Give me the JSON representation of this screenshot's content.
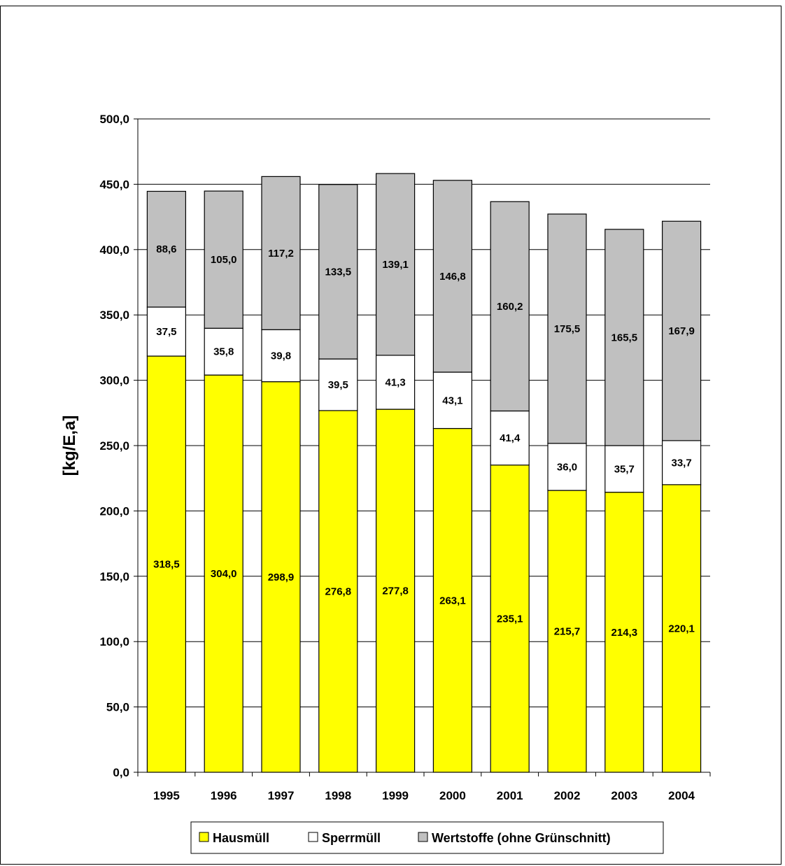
{
  "chart_data": {
    "type": "bar",
    "stacked": true,
    "categories": [
      "1995",
      "1996",
      "1997",
      "1998",
      "1999",
      "2000",
      "2001",
      "2002",
      "2003",
      "2004"
    ],
    "series": [
      {
        "name": "Hausmüll",
        "color": "#ffff00",
        "values": [
          318.5,
          304.0,
          298.9,
          276.8,
          277.8,
          263.1,
          235.1,
          215.7,
          214.3,
          220.1
        ],
        "labels": [
          "318,5",
          "304,0",
          "298,9",
          "276,8",
          "277,8",
          "263,1",
          "235,1",
          "215,7",
          "214,3",
          "220,1"
        ]
      },
      {
        "name": "Sperrmüll",
        "color": "#ffffff",
        "values": [
          37.5,
          35.8,
          39.8,
          39.5,
          41.3,
          43.1,
          41.4,
          36.0,
          35.7,
          33.7
        ],
        "labels": [
          "37,5",
          "35,8",
          "39,8",
          "39,5",
          "41,3",
          "43,1",
          "41,4",
          "36,0",
          "35,7",
          "33,7"
        ]
      },
      {
        "name": "Wertstoffe (ohne Grünschnitt)",
        "color": "#c0c0c0",
        "values": [
          88.6,
          105.0,
          117.2,
          133.5,
          139.1,
          146.8,
          160.2,
          175.5,
          165.5,
          167.9
        ],
        "labels": [
          "88,6",
          "105,0",
          "117,2",
          "133,5",
          "139,1",
          "146,8",
          "160,2",
          "175,5",
          "165,5",
          "167,9"
        ]
      }
    ],
    "ylabel": "[kg/E,a]",
    "ylim": [
      0,
      500
    ],
    "yticks": [
      0,
      50,
      100,
      150,
      200,
      250,
      300,
      350,
      400,
      450,
      500
    ],
    "ytick_labels": [
      "0,0",
      "50,0",
      "100,0",
      "150,0",
      "200,0",
      "250,0",
      "300,0",
      "350,0",
      "400,0",
      "450,0",
      "500,0"
    ],
    "grid": true,
    "legend": "bottom"
  }
}
